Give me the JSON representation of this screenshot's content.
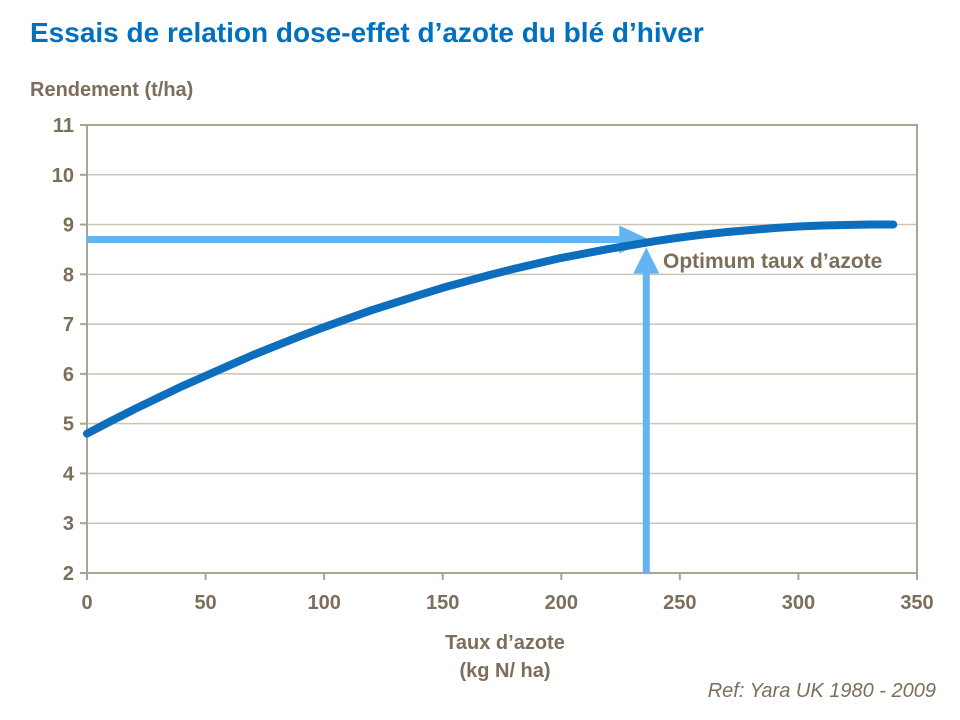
{
  "slide": {
    "ref": "Ref: Yara UK 1980 - 2009"
  },
  "chart_data": {
    "type": "line",
    "title": "Essais de relation dose-effet d’azote du blé d’hiver",
    "ylabel": "Rendement (t/ha)",
    "xlabel": "Taux d’azote (kg N/ ha)",
    "xlabel_lines": [
      "Taux d’azote",
      "(kg N/ ha)"
    ],
    "xlim": [
      0,
      350
    ],
    "ylim": [
      2,
      11
    ],
    "xticks": [
      0,
      50,
      100,
      150,
      200,
      250,
      300,
      350
    ],
    "yticks": [
      2,
      3,
      4,
      5,
      6,
      7,
      8,
      9,
      10,
      11
    ],
    "grid": "horizontal",
    "legend": "none",
    "x": [
      0,
      10,
      20,
      30,
      40,
      50,
      60,
      70,
      80,
      90,
      100,
      110,
      120,
      130,
      140,
      150,
      160,
      170,
      180,
      190,
      200,
      210,
      220,
      230,
      240,
      250,
      260,
      270,
      280,
      290,
      300,
      310,
      320,
      330,
      340
    ],
    "series": [
      {
        "name": "Rendement (t/ha)",
        "values": [
          4.8,
          5.05,
          5.29,
          5.52,
          5.75,
          5.96,
          6.17,
          6.38,
          6.57,
          6.76,
          6.94,
          7.11,
          7.28,
          7.43,
          7.58,
          7.73,
          7.86,
          7.99,
          8.11,
          8.22,
          8.33,
          8.42,
          8.51,
          8.59,
          8.67,
          8.74,
          8.8,
          8.85,
          8.89,
          8.93,
          8.96,
          8.98,
          8.99,
          9.0,
          9.0
        ]
      }
    ],
    "annotation": {
      "label": "Optimum taux d’azote",
      "optimum_x": 235,
      "optimum_y": 8.7
    }
  },
  "colors": {
    "title_blue": "#0070C0",
    "curve_blue": "#0D6EBD",
    "arrow_blue": "#63B5F2",
    "text_brown": "#7C6E5A",
    "grid_tan": "#CCC4B4",
    "axis_frame": "#ABA394"
  }
}
